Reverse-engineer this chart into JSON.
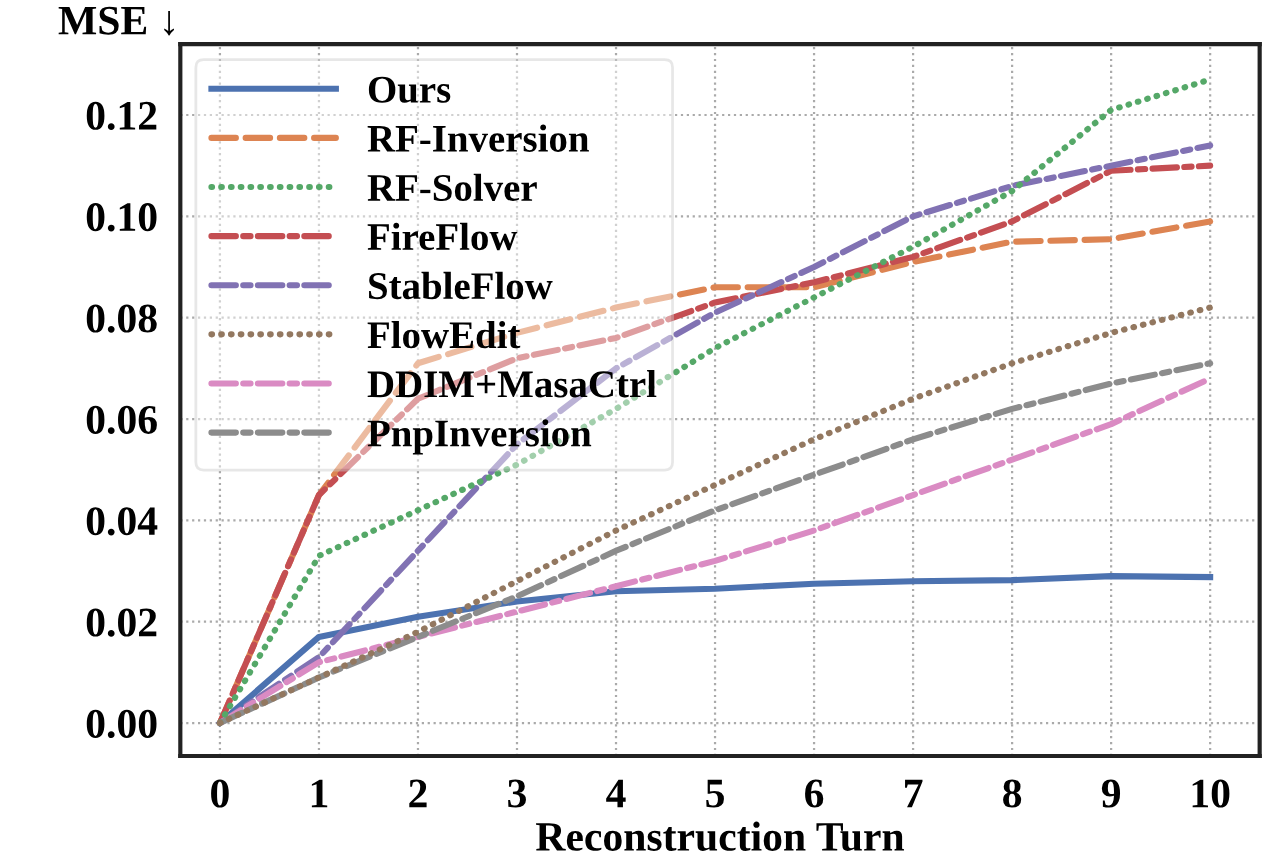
{
  "chart_data": {
    "type": "line",
    "xlabel": "Reconstruction Turn",
    "ylabel": "MSE ↓",
    "x": [
      0,
      1,
      2,
      3,
      4,
      5,
      6,
      7,
      8,
      9,
      10
    ],
    "xlim": [
      -0.4,
      10.5
    ],
    "xticks": [
      0,
      1,
      2,
      3,
      4,
      5,
      6,
      7,
      8,
      9,
      10
    ],
    "ylim": [
      -0.0065,
      0.134
    ],
    "yticks": [
      {
        "value": 0,
        "label": "0.00"
      },
      {
        "value": 0.02,
        "label": "0.02"
      },
      {
        "value": 0.04,
        "label": "0.04"
      },
      {
        "value": 0.06,
        "label": "0.06"
      },
      {
        "value": 0.08,
        "label": "0.08"
      },
      {
        "value": 0.1,
        "label": "0.10"
      },
      {
        "value": 0.12,
        "label": "0.12"
      }
    ],
    "grid": true,
    "legend": "top left",
    "marker": "none",
    "series": [
      {
        "name": "Ours",
        "color": "#4c72b0",
        "line_style": "solid",
        "values": [
          0,
          0.017,
          0.021,
          0.024,
          0.026,
          0.0265,
          0.0275,
          0.028,
          0.0282,
          0.029,
          0.0288
        ]
      },
      {
        "name": "RF-Inversion",
        "color": "#dd8452",
        "line_style": "dashed",
        "values": [
          0,
          0.045,
          0.071,
          0.077,
          0.082,
          0.086,
          0.086,
          0.091,
          0.095,
          0.0955,
          0.099
        ]
      },
      {
        "name": "RF-Solver",
        "color": "#55a868",
        "line_style": "dotted",
        "values": [
          0,
          0.033,
          0.042,
          0.051,
          0.062,
          0.074,
          0.084,
          0.094,
          0.105,
          0.121,
          0.127
        ]
      },
      {
        "name": "FireFlow",
        "color": "#c44e52",
        "line_style": "dashdot",
        "values": [
          0,
          0.045,
          0.064,
          0.072,
          0.076,
          0.083,
          0.087,
          0.092,
          0.099,
          0.109,
          0.11
        ]
      },
      {
        "name": "StableFlow",
        "color": "#8172b3",
        "line_style": "dashdot",
        "values": [
          0,
          0.013,
          0.034,
          0.055,
          0.07,
          0.081,
          0.09,
          0.1,
          0.106,
          0.11,
          0.114
        ]
      },
      {
        "name": "FlowEdit",
        "color": "#937860",
        "line_style": "dotted",
        "values": [
          0,
          0.009,
          0.018,
          0.028,
          0.038,
          0.047,
          0.056,
          0.064,
          0.071,
          0.077,
          0.082
        ]
      },
      {
        "name": "DDIM+MasaCtrl",
        "color": "#da8bc3",
        "line_style": "dashdot",
        "values": [
          0,
          0.012,
          0.017,
          0.022,
          0.027,
          0.032,
          0.038,
          0.045,
          0.052,
          0.059,
          0.068
        ]
      },
      {
        "name": "PnpInversion",
        "color": "#8c8c8c",
        "line_style": "dashdot",
        "values": [
          0,
          0.009,
          0.017,
          0.025,
          0.034,
          0.042,
          0.049,
          0.056,
          0.062,
          0.067,
          0.071
        ]
      }
    ]
  }
}
